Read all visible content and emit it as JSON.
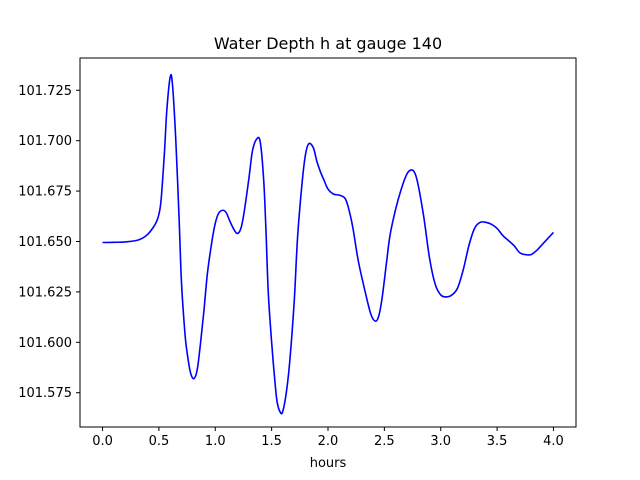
{
  "chart_data": {
    "type": "line",
    "title": "Water Depth h at gauge 140",
    "xlabel": "hours",
    "ylabel": "",
    "xlim": [
      -0.2,
      4.2
    ],
    "ylim": [
      101.558,
      101.741
    ],
    "xticks": [
      0.0,
      0.5,
      1.0,
      1.5,
      2.0,
      2.5,
      3.0,
      3.5,
      4.0
    ],
    "xtick_labels": [
      "0.0",
      "0.5",
      "1.0",
      "1.5",
      "2.0",
      "2.5",
      "3.0",
      "3.5",
      "4.0"
    ],
    "yticks": [
      101.575,
      101.6,
      101.625,
      101.65,
      101.675,
      101.7,
      101.725
    ],
    "ytick_labels": [
      "101.575",
      "101.600",
      "101.625",
      "101.650",
      "101.675",
      "101.700",
      "101.725"
    ],
    "grid": false,
    "series": [
      {
        "color": "#0000ff",
        "x": [
          0.0,
          0.1,
          0.2,
          0.3,
          0.35,
          0.4,
          0.45,
          0.48,
          0.5,
          0.52,
          0.55,
          0.57,
          0.6,
          0.62,
          0.65,
          0.68,
          0.7,
          0.73,
          0.75,
          0.78,
          0.81,
          0.84,
          0.87,
          0.9,
          0.93,
          0.97,
          1.0,
          1.03,
          1.07,
          1.1,
          1.13,
          1.17,
          1.2,
          1.23,
          1.26,
          1.3,
          1.33,
          1.37,
          1.4,
          1.43,
          1.45,
          1.47,
          1.5,
          1.53,
          1.55,
          1.58,
          1.6,
          1.63,
          1.66,
          1.7,
          1.73,
          1.77,
          1.8,
          1.83,
          1.87,
          1.9,
          1.93,
          1.96,
          2.0,
          2.05,
          2.1,
          2.15,
          2.18,
          2.22,
          2.27,
          2.33,
          2.38,
          2.42,
          2.45,
          2.48,
          2.52,
          2.55,
          2.6,
          2.65,
          2.7,
          2.74,
          2.77,
          2.8,
          2.85,
          2.9,
          2.95,
          3.0,
          3.05,
          3.1,
          3.15,
          3.2,
          3.25,
          3.3,
          3.35,
          3.4,
          3.45,
          3.5,
          3.55,
          3.6,
          3.65,
          3.7,
          3.75,
          3.8,
          3.85,
          3.9,
          3.95,
          4.0
        ],
        "y": [
          101.6495,
          101.6496,
          101.6498,
          101.6505,
          101.6515,
          101.6535,
          101.657,
          101.66,
          101.6635,
          101.671,
          101.695,
          101.715,
          101.7315,
          101.728,
          101.7,
          101.66,
          101.63,
          101.605,
          101.595,
          101.585,
          101.582,
          101.5865,
          101.6,
          101.616,
          101.634,
          101.65,
          101.659,
          101.664,
          101.6655,
          101.664,
          101.66,
          101.6555,
          101.654,
          101.657,
          101.666,
          101.682,
          101.695,
          101.701,
          101.699,
          101.68,
          101.655,
          101.625,
          101.6,
          101.58,
          101.57,
          101.565,
          101.566,
          101.575,
          101.59,
          101.62,
          101.652,
          101.679,
          101.693,
          101.6985,
          101.6965,
          101.69,
          101.685,
          101.681,
          101.676,
          101.6735,
          101.673,
          101.6715,
          101.667,
          101.657,
          101.64,
          101.625,
          101.614,
          101.6105,
          101.613,
          101.622,
          101.64,
          101.653,
          101.666,
          101.676,
          101.6835,
          101.6855,
          101.684,
          101.678,
          101.662,
          101.642,
          101.629,
          101.6235,
          101.6225,
          101.6235,
          101.627,
          101.636,
          101.648,
          101.6565,
          101.6595,
          101.6595,
          101.6585,
          101.6565,
          101.653,
          101.6505,
          101.648,
          101.6445,
          101.6435,
          101.6435,
          101.6455,
          101.6485,
          101.6515,
          101.6545
        ]
      }
    ]
  }
}
